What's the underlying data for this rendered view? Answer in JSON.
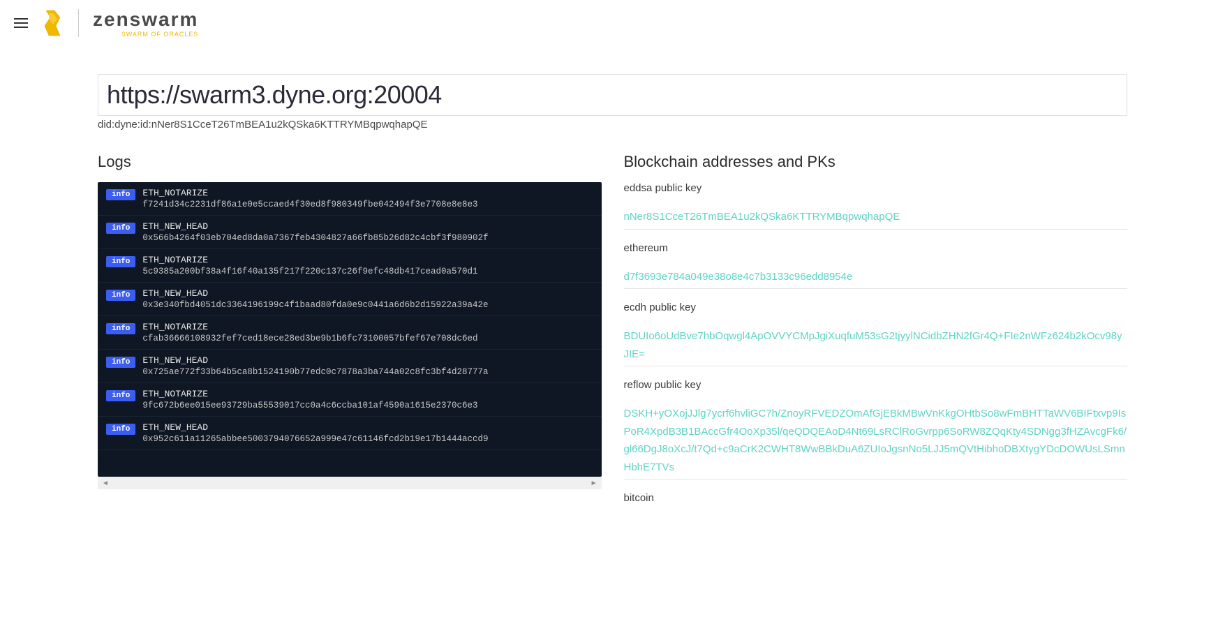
{
  "header": {
    "logo_title": "zenswarm",
    "logo_subtitle": "SWARM OF ORACLES"
  },
  "main": {
    "url": "https://swarm3.dyne.org:20004",
    "did": "did:dyne:id:nNer8S1CceT26TmBEA1u2kQSka6KTTRYMBqpwqhapQE"
  },
  "logs": {
    "title": "Logs",
    "badge_label": "info",
    "entries": [
      {
        "type": "ETH_NOTARIZE",
        "hash": "f7241d34c2231df86a1e0e5ccaed4f30ed8f980349fbe042494f3e7708e8e8e3"
      },
      {
        "type": "ETH_NEW_HEAD",
        "hash": "0x566b4264f03eb704ed8da0a7367feb4304827a66fb85b26d82c4cbf3f980902f"
      },
      {
        "type": "ETH_NOTARIZE",
        "hash": "5c9385a200bf38a4f16f40a135f217f220c137c26f9efc48db417cead0a570d1"
      },
      {
        "type": "ETH_NEW_HEAD",
        "hash": "0x3e340fbd4051dc3364196199c4f1baad80fda0e9c0441a6d6b2d15922a39a42e"
      },
      {
        "type": "ETH_NOTARIZE",
        "hash": "cfab36666108932fef7ced18ece28ed3be9b1b6fc73100057bfef67e708dc6ed"
      },
      {
        "type": "ETH_NEW_HEAD",
        "hash": "0x725ae772f33b64b5ca8b1524190b77edc0c7878a3ba744a02c8fc3bf4d28777a"
      },
      {
        "type": "ETH_NOTARIZE",
        "hash": "9fc672b6ee015ee93729ba55539017cc0a4c6ccba101af4590a1615e2370c6e3"
      },
      {
        "type": "ETH_NEW_HEAD",
        "hash": "0x952c611a11265abbee5003794076652a999e47c61146fcd2b19e17b1444accd9"
      }
    ]
  },
  "blockchain": {
    "title": "Blockchain addresses and PKs",
    "keys": [
      {
        "label": "eddsa public key",
        "value": "nNer8S1CceT26TmBEA1u2kQSka6KTTRYMBqpwqhapQE"
      },
      {
        "label": "ethereum",
        "value": "d7f3693e784a049e38o8e4c7b3133c96edd8954e"
      },
      {
        "label": "ecdh public key",
        "value": "BDUIo6oUdBve7hbOqwgl4ApOVVYCMpJgiXuqfuM53sG2tjyylNCidbZHN2fGr4Q+FIe2nWFz624b2kOcv98yJIE="
      },
      {
        "label": "reflow public key",
        "value": "DSKH+yOXojJJlg7ycrf6hvliGC7h/ZnoyRFVEDZOmAfGjEBkMBwVnKkgOHtbSo8wFmBHTTaWV6BIFtxvp9IsPoR4XpdB3B1BAccGfr4OoXp35l/qeQDQEAoD4Nt69LsRClRoGvrpp6SoRW8ZQqKty4SDNgg3fHZAvcgFk6/gl66DgJ8oXcJ/t7Qd+c9aCrK2CWHT8WwBBkDuA6ZUIoJgsnNo5LJJ5mQVtHibhoDBXtygYDcDOWUsLSmnHbhE7TVs"
      },
      {
        "label": "bitcoin",
        "value": ""
      }
    ]
  },
  "colors": {
    "log_background": "#0f1724",
    "badge_background": "#3b5ef0",
    "key_value_color": "#5dd4c4",
    "logo_yellow": "#f0b800"
  }
}
